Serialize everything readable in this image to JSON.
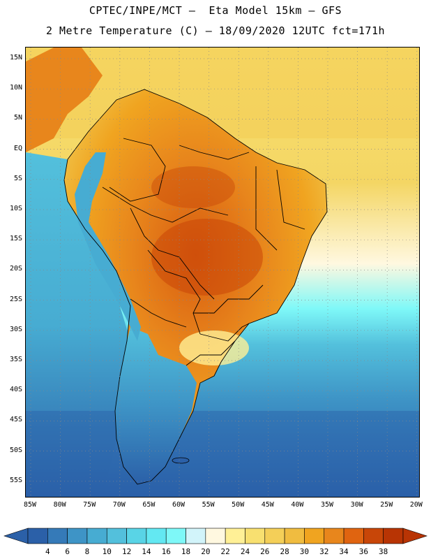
{
  "header": {
    "line1": "CPTEC/INPE/MCT –  Eta Model 15km – GFS",
    "line2": "2 Metre Temperature (C) – 18/09/2020 12UTC fct=171h"
  },
  "map": {
    "lat_labels": [
      "15N",
      "10N",
      "5N",
      "EQ",
      "5S",
      "10S",
      "15S",
      "20S",
      "25S",
      "30S",
      "35S",
      "40S",
      "45S",
      "50S",
      "55S"
    ],
    "lon_labels": [
      "85W",
      "80W",
      "75W",
      "70W",
      "65W",
      "60W",
      "55W",
      "50W",
      "45W",
      "40W",
      "35W",
      "30W",
      "25W",
      "20W"
    ],
    "grid": "dotted"
  },
  "colorbar": {
    "labels": [
      "4",
      "6",
      "8",
      "10",
      "12",
      "14",
      "16",
      "18",
      "20",
      "22",
      "24",
      "26",
      "28",
      "30",
      "32",
      "34",
      "36",
      "38"
    ],
    "colors": [
      "#2b60a8",
      "#357ab8",
      "#3e94c6",
      "#47acd2",
      "#53c0dc",
      "#59d4e6",
      "#63e8f2",
      "#7ef8f8",
      "#d2f4fa",
      "#fff8e0",
      "#fff096",
      "#f8e070",
      "#f4cf58",
      "#f0bc40",
      "#f0a420",
      "#e8861c",
      "#e06410",
      "#c84608",
      "#b83404"
    ]
  },
  "colors": {
    "cold": "#2b60a8",
    "ocean_mid": "#47acd2",
    "warm_ocean": "#f4cf58",
    "hot": "#e06410"
  }
}
